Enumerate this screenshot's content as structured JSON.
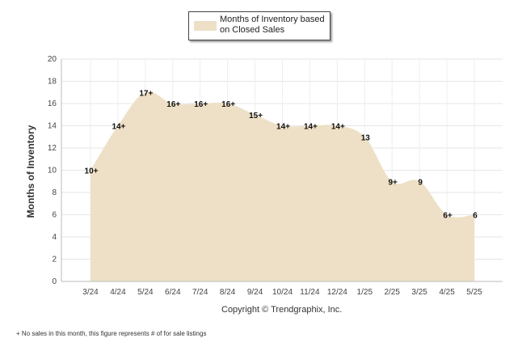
{
  "chart_data": {
    "type": "area",
    "title": "",
    "ylabel": "Months of Inventory",
    "xlabel": "",
    "ylim": [
      0,
      20
    ],
    "yticks": [
      0,
      2,
      4,
      6,
      8,
      10,
      12,
      14,
      16,
      18,
      20
    ],
    "grid": true,
    "legend_position": "top-center",
    "categories": [
      "3/24",
      "4/24",
      "5/24",
      "6/24",
      "7/24",
      "8/24",
      "9/24",
      "10/24",
      "11/24",
      "12/24",
      "1/25",
      "2/25",
      "3/25",
      "4/25",
      "5/25"
    ],
    "series": [
      {
        "name": "Months of Inventory based on Closed Sales",
        "values": [
          10,
          14,
          17,
          16,
          16,
          16,
          15,
          14,
          14,
          14,
          13,
          9,
          9,
          6,
          6
        ],
        "labels": [
          "10+",
          "14+",
          "17+",
          "16+",
          "16+",
          "16+",
          "15+",
          "14+",
          "14+",
          "14+",
          "13",
          "9+",
          "9",
          "6+",
          "6"
        ],
        "color": "#ede0c6"
      }
    ]
  },
  "legend": {
    "label": "Months of Inventory based on Closed Sales"
  },
  "copyright": "Copyright © Trendgraphix, Inc.",
  "footnote": "+  No sales in this month, this figure represents # of for sale listings"
}
